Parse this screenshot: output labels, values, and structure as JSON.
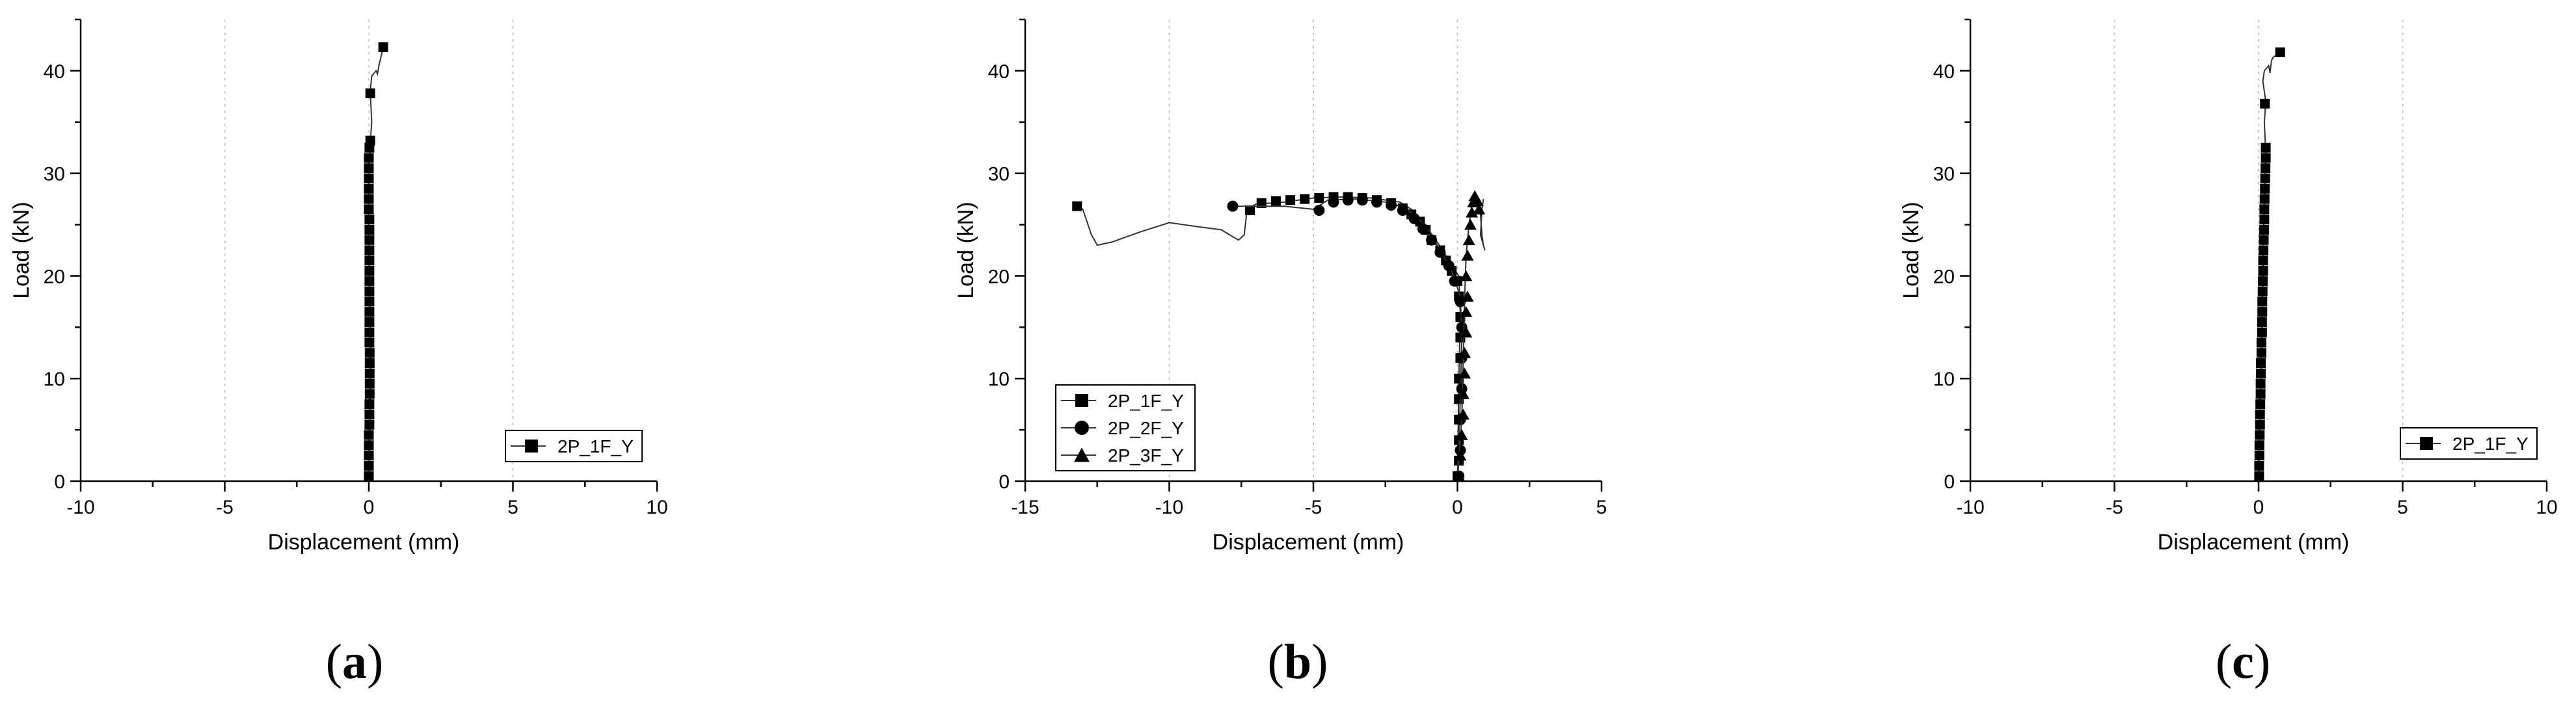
{
  "chart_data": [
    {
      "type": "line",
      "panel": "a",
      "caption": "a",
      "xlabel": "Displacement (mm)",
      "ylabel": "Load (kN)",
      "xlim": [
        -10,
        10
      ],
      "ylim": [
        0,
        45
      ],
      "xticks": [
        -10,
        -5,
        0,
        5,
        10
      ],
      "yticks": [
        0,
        10,
        20,
        30,
        40
      ],
      "grid_x": [
        -5,
        0,
        5
      ],
      "legend_position": "bottom-right",
      "series": [
        {
          "name": "2P_1F_Y",
          "marker": "square",
          "line": [
            [
              0,
              0
            ],
            [
              0.05,
              8
            ],
            [
              0.05,
              16
            ],
            [
              0.0,
              24
            ],
            [
              0.0,
              30
            ],
            [
              0.05,
              33
            ],
            [
              0.1,
              35
            ],
            [
              0.05,
              38
            ],
            [
              0.1,
              39.5
            ],
            [
              0.25,
              40
            ],
            [
              0.3,
              39.7
            ],
            [
              0.35,
              40.5
            ],
            [
              0.5,
              42.3
            ]
          ],
          "points": [
            [
              0,
              0.5
            ],
            [
              0,
              1.5
            ],
            [
              0,
              2.5
            ],
            [
              0,
              3.5
            ],
            [
              0,
              4.5
            ],
            [
              0.02,
              5.5
            ],
            [
              0.02,
              6.5
            ],
            [
              0.02,
              7.5
            ],
            [
              0.03,
              8.5
            ],
            [
              0.03,
              9.5
            ],
            [
              0.03,
              10.5
            ],
            [
              0.03,
              11.5
            ],
            [
              0.03,
              12.5
            ],
            [
              0.02,
              13.5
            ],
            [
              0.02,
              14.5
            ],
            [
              0.02,
              15.5
            ],
            [
              0.02,
              16.5
            ],
            [
              0.02,
              17.5
            ],
            [
              0.02,
              18.5
            ],
            [
              0.02,
              19.5
            ],
            [
              0.02,
              20.5
            ],
            [
              0.02,
              21.5
            ],
            [
              0.02,
              22.5
            ],
            [
              0.02,
              23.5
            ],
            [
              0.02,
              24.5
            ],
            [
              0.02,
              25.5
            ],
            [
              0,
              26.5
            ],
            [
              0,
              27.5
            ],
            [
              0,
              28.5
            ],
            [
              0,
              29.5
            ],
            [
              0,
              30.5
            ],
            [
              0,
              31.5
            ],
            [
              0.02,
              32.5
            ],
            [
              0.05,
              33.2
            ],
            [
              0.05,
              37.8
            ],
            [
              0.5,
              42.3
            ]
          ]
        }
      ]
    },
    {
      "type": "line",
      "panel": "b",
      "caption": "b",
      "xlabel": "Displacement (mm)",
      "ylabel": "Load (kN)",
      "xlim": [
        -15,
        5
      ],
      "ylim": [
        0,
        45
      ],
      "xticks": [
        -15,
        -10,
        -5,
        0,
        5
      ],
      "yticks": [
        0,
        10,
        20,
        30,
        40
      ],
      "grid_x": [
        -10,
        -5,
        0
      ],
      "legend_position": "bottom-left",
      "series": [
        {
          "name": "2P_1F_Y",
          "marker": "square",
          "line": [
            [
              0,
              0
            ],
            [
              0.05,
              10
            ],
            [
              0.1,
              16
            ],
            [
              0.05,
              20
            ],
            [
              -0.2,
              21
            ],
            [
              -0.5,
              22.5
            ],
            [
              -1,
              24.5
            ],
            [
              -1.3,
              25.5
            ],
            [
              -1.6,
              26.5
            ],
            [
              -2,
              27.2
            ],
            [
              -3,
              27.6
            ],
            [
              -4,
              27.7
            ],
            [
              -5,
              27.6
            ],
            [
              -6,
              27.2
            ],
            [
              -7,
              27
            ],
            [
              -7.3,
              26.5
            ],
            [
              -7.4,
              24
            ],
            [
              -7.6,
              23.5
            ],
            [
              -8.2,
              24.5
            ],
            [
              -9,
              24.8
            ],
            [
              -10,
              25.2
            ],
            [
              -11,
              24.3
            ],
            [
              -12,
              23.3
            ],
            [
              -12.5,
              23
            ],
            [
              -12.7,
              24
            ],
            [
              -13,
              26.5
            ],
            [
              -13.2,
              26.8
            ]
          ],
          "points": [
            [
              0,
              0.5
            ],
            [
              0.05,
              2
            ],
            [
              0.05,
              4
            ],
            [
              0.05,
              6
            ],
            [
              0.05,
              8
            ],
            [
              0.05,
              10
            ],
            [
              0.1,
              12
            ],
            [
              0.1,
              14
            ],
            [
              0.1,
              16
            ],
            [
              0.05,
              18
            ],
            [
              0,
              19.5
            ],
            [
              -0.2,
              20.5
            ],
            [
              -0.4,
              21.5
            ],
            [
              -0.6,
              22.5
            ],
            [
              -0.9,
              23.5
            ],
            [
              -1.1,
              24.5
            ],
            [
              -1.3,
              25.3
            ],
            [
              -1.6,
              26
            ],
            [
              -1.9,
              26.6
            ],
            [
              -2.3,
              27.1
            ],
            [
              -2.8,
              27.4
            ],
            [
              -3.3,
              27.6
            ],
            [
              -3.8,
              27.7
            ],
            [
              -4.3,
              27.7
            ],
            [
              -4.8,
              27.6
            ],
            [
              -5.3,
              27.5
            ],
            [
              -5.8,
              27.4
            ],
            [
              -6.3,
              27.3
            ],
            [
              -6.8,
              27.1
            ],
            [
              -7.2,
              26.4
            ],
            [
              -13.2,
              26.8
            ]
          ]
        },
        {
          "name": "2P_2F_Y",
          "marker": "circle",
          "line": [
            [
              0,
              0
            ],
            [
              0.1,
              8
            ],
            [
              0.15,
              14
            ],
            [
              0.1,
              18
            ],
            [
              -0.2,
              20.5
            ],
            [
              -0.6,
              22.5
            ],
            [
              -1,
              24.5
            ],
            [
              -1.5,
              26
            ],
            [
              -2,
              26.8
            ],
            [
              -2.5,
              27.2
            ],
            [
              -3.5,
              27.5
            ],
            [
              -4.5,
              27.4
            ],
            [
              -5,
              26.5
            ],
            [
              -6,
              26.8
            ],
            [
              -7,
              26.8
            ],
            [
              -7.8,
              26.8
            ]
          ],
          "points": [
            [
              0.05,
              0.5
            ],
            [
              0.1,
              3
            ],
            [
              0.1,
              6
            ],
            [
              0.15,
              9
            ],
            [
              0.15,
              12
            ],
            [
              0.15,
              15
            ],
            [
              0.1,
              17.5
            ],
            [
              -0.1,
              19.5
            ],
            [
              -0.3,
              21
            ],
            [
              -0.6,
              22.3
            ],
            [
              -0.9,
              23.5
            ],
            [
              -1.2,
              24.6
            ],
            [
              -1.5,
              25.6
            ],
            [
              -1.9,
              26.4
            ],
            [
              -2.3,
              26.9
            ],
            [
              -2.8,
              27.2
            ],
            [
              -3.3,
              27.4
            ],
            [
              -3.8,
              27.4
            ],
            [
              -4.3,
              27.2
            ],
            [
              -4.8,
              26.4
            ],
            [
              -7.8,
              26.8
            ]
          ]
        },
        {
          "name": "2P_3F_Y",
          "marker": "triangle",
          "line": [
            [
              0,
              0
            ],
            [
              0.15,
              6
            ],
            [
              0.2,
              12
            ],
            [
              0.25,
              18
            ],
            [
              0.3,
              22
            ],
            [
              0.4,
              25
            ],
            [
              0.5,
              27
            ],
            [
              0.6,
              27.8
            ],
            [
              0.7,
              27
            ],
            [
              0.8,
              26
            ],
            [
              0.85,
              24
            ],
            [
              0.9,
              23
            ],
            [
              0.95,
              22.5
            ],
            [
              0.8,
              24
            ],
            [
              0.85,
              26.5
            ],
            [
              0.9,
              27.5
            ]
          ],
          "points": [
            [
              0.05,
              0.5
            ],
            [
              0.1,
              2.5
            ],
            [
              0.15,
              4.5
            ],
            [
              0.2,
              6.5
            ],
            [
              0.2,
              8.5
            ],
            [
              0.25,
              10.5
            ],
            [
              0.25,
              12.5
            ],
            [
              0.3,
              14.5
            ],
            [
              0.3,
              16.5
            ],
            [
              0.35,
              18
            ],
            [
              0.3,
              20
            ],
            [
              0.35,
              22
            ],
            [
              0.4,
              23.5
            ],
            [
              0.45,
              25
            ],
            [
              0.5,
              26.2
            ],
            [
              0.55,
              27.2
            ],
            [
              0.6,
              27.8
            ],
            [
              0.7,
              27.3
            ],
            [
              0.75,
              26.5
            ]
          ]
        }
      ]
    },
    {
      "type": "line",
      "panel": "c",
      "caption": "c",
      "xlabel": "Displacement (mm)",
      "ylabel": "Load (kN)",
      "xlim": [
        -10,
        10
      ],
      "ylim": [
        0,
        45
      ],
      "xticks": [
        -10,
        -5,
        0,
        5,
        10
      ],
      "yticks": [
        0,
        10,
        20,
        30,
        40
      ],
      "grid_x": [
        -5,
        0,
        5
      ],
      "legend_position": "bottom-right",
      "series": [
        {
          "name": "2P_1F_Y",
          "marker": "square",
          "line": [
            [
              0,
              0
            ],
            [
              0.05,
              6
            ],
            [
              0.1,
              12
            ],
            [
              0.15,
              20
            ],
            [
              0.2,
              28
            ],
            [
              0.25,
              32
            ],
            [
              0.2,
              35
            ],
            [
              0.25,
              37
            ],
            [
              0.15,
              39
            ],
            [
              0.2,
              40
            ],
            [
              0.35,
              40.5
            ],
            [
              0.4,
              39.8
            ],
            [
              0.45,
              41
            ],
            [
              0.5,
              41.3
            ],
            [
              0.75,
              41.8
            ]
          ],
          "points": [
            [
              0.02,
              0.5
            ],
            [
              0.02,
              1.5
            ],
            [
              0.03,
              2.5
            ],
            [
              0.03,
              3.5
            ],
            [
              0.04,
              4.5
            ],
            [
              0.05,
              5.5
            ],
            [
              0.05,
              6.5
            ],
            [
              0.06,
              7.5
            ],
            [
              0.07,
              8.5
            ],
            [
              0.07,
              9.5
            ],
            [
              0.08,
              10.5
            ],
            [
              0.08,
              11.5
            ],
            [
              0.1,
              12.5
            ],
            [
              0.1,
              13.5
            ],
            [
              0.12,
              14.5
            ],
            [
              0.12,
              15.5
            ],
            [
              0.13,
              16.5
            ],
            [
              0.13,
              17.5
            ],
            [
              0.14,
              18.5
            ],
            [
              0.15,
              19.5
            ],
            [
              0.16,
              20.5
            ],
            [
              0.16,
              21.5
            ],
            [
              0.17,
              22.5
            ],
            [
              0.18,
              23.5
            ],
            [
              0.19,
              24.5
            ],
            [
              0.2,
              25.5
            ],
            [
              0.2,
              26.5
            ],
            [
              0.21,
              27.5
            ],
            [
              0.22,
              28.5
            ],
            [
              0.23,
              29.5
            ],
            [
              0.24,
              30.5
            ],
            [
              0.25,
              31.5
            ],
            [
              0.25,
              32.5
            ],
            [
              0.22,
              36.8
            ],
            [
              0.75,
              41.8
            ]
          ]
        }
      ]
    }
  ]
}
